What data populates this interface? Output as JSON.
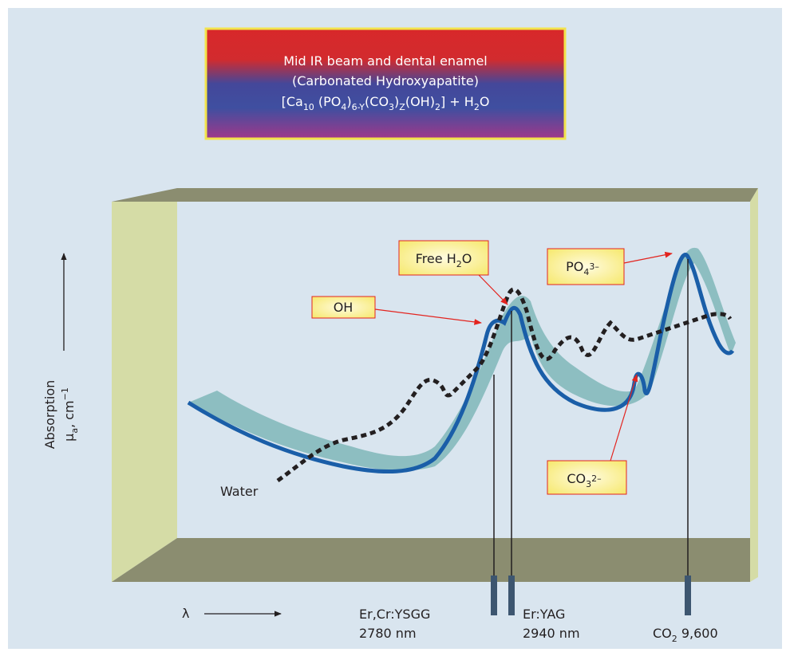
{
  "title_box": {
    "line1": "Mid IR beam and dental enamel",
    "line2": "(Carbonated Hydroxyapatite)",
    "formula": [
      "[Ca",
      "10",
      " (PO",
      "4",
      ")",
      "6-Y",
      "(CO",
      "3",
      ")",
      "Z",
      "(OH)",
      "2",
      "] + H",
      "2",
      "O"
    ]
  },
  "y_axis": {
    "line1": "Absorption",
    "line2": [
      "μ",
      "a",
      ", cm",
      "−1"
    ]
  },
  "x_axis": {
    "label": "λ"
  },
  "labels": {
    "oh": "OH",
    "free_water": [
      "Free H",
      "2",
      "O"
    ],
    "phosphate": [
      "PO",
      "4",
      "3–"
    ],
    "carbonate": [
      "CO",
      "3",
      "2–"
    ],
    "water": "Water"
  },
  "lasers": [
    {
      "name": "Er,Cr:YSGG",
      "wavelength": "2780 nm"
    },
    {
      "name": "Er:YAG",
      "wavelength": "2940 nm"
    },
    {
      "name": [
        "CO",
        "2",
        " 9,600"
      ]
    }
  ]
}
